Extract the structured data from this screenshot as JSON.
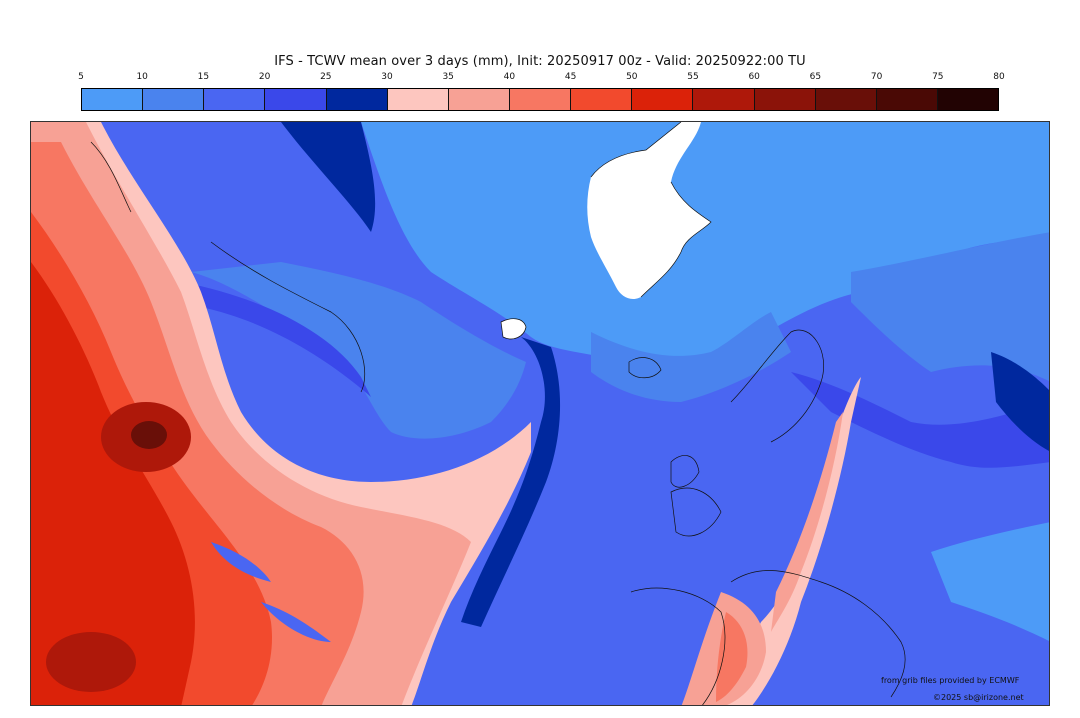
{
  "title": "IFS - TCWV mean over 3 days (mm), Init: 20250917 00z - Valid: 20250922:00 TU",
  "colorbar": {
    "ticks": [
      "5",
      "10",
      "15",
      "20",
      "25",
      "30",
      "35",
      "40",
      "45",
      "50",
      "55",
      "60",
      "65",
      "70",
      "75",
      "80"
    ],
    "colors": [
      "#4d9bf7",
      "#4a83ee",
      "#4a66f2",
      "#3a48ea",
      "#00289e",
      "#fdc6bf",
      "#f7a195",
      "#f77762",
      "#f24a2d",
      "#db2209",
      "#ae180a",
      "#8b1309",
      "#690f08",
      "#4a0905",
      "#220303"
    ]
  },
  "credits": {
    "source": "from grib files provided by ECMWF",
    "copyright": "©2025 sb@irizone.net"
  }
}
